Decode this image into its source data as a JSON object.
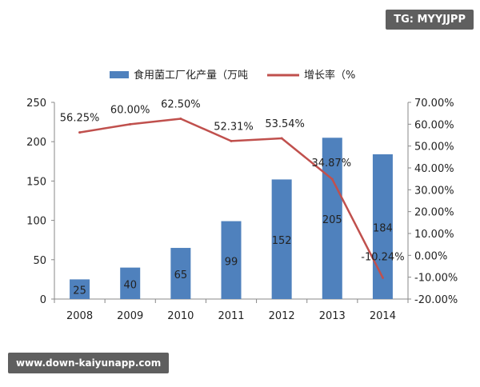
{
  "watermarks": {
    "top_right": "TG: MYYJJPP",
    "bottom_left": "www.down-kaiyunapp.com"
  },
  "chart_data": {
    "type": "bar",
    "title": "",
    "categories": [
      "2008",
      "2009",
      "2010",
      "2011",
      "2012",
      "2013",
      "2014"
    ],
    "series": [
      {
        "name": "食用菌工厂化产量（万吨",
        "type": "bar",
        "axis": "left",
        "values": [
          25,
          40,
          65,
          99,
          152,
          205,
          184
        ],
        "labels": [
          "25",
          "40",
          "65",
          "99",
          "152",
          "205",
          "184"
        ],
        "color": "#4f81bd"
      },
      {
        "name": "增长率（%",
        "type": "line",
        "axis": "right",
        "values": [
          56.25,
          60.0,
          62.5,
          52.31,
          53.54,
          34.87,
          -10.24
        ],
        "labels": [
          "56.25%",
          "60.00%",
          "62.50%",
          "52.31%",
          "53.54%",
          "34.87%",
          "-10.24%"
        ],
        "color": "#c0504d"
      }
    ],
    "y_left": {
      "lim": [
        0,
        250
      ],
      "ticks": [
        0,
        50,
        100,
        150,
        200,
        250
      ],
      "tick_labels": [
        "0",
        "50",
        "100",
        "150",
        "200",
        "250"
      ]
    },
    "y_right": {
      "lim": [
        -20,
        70
      ],
      "ticks": [
        -20,
        -10,
        0,
        10,
        20,
        30,
        40,
        50,
        60,
        70
      ],
      "tick_labels": [
        "-20.00%",
        "-10.00%",
        "0.00%",
        "10.00%",
        "20.00%",
        "30.00%",
        "40.00%",
        "50.00%",
        "60.00%",
        "70.00%"
      ]
    },
    "grid": false,
    "legend": "top-center"
  }
}
